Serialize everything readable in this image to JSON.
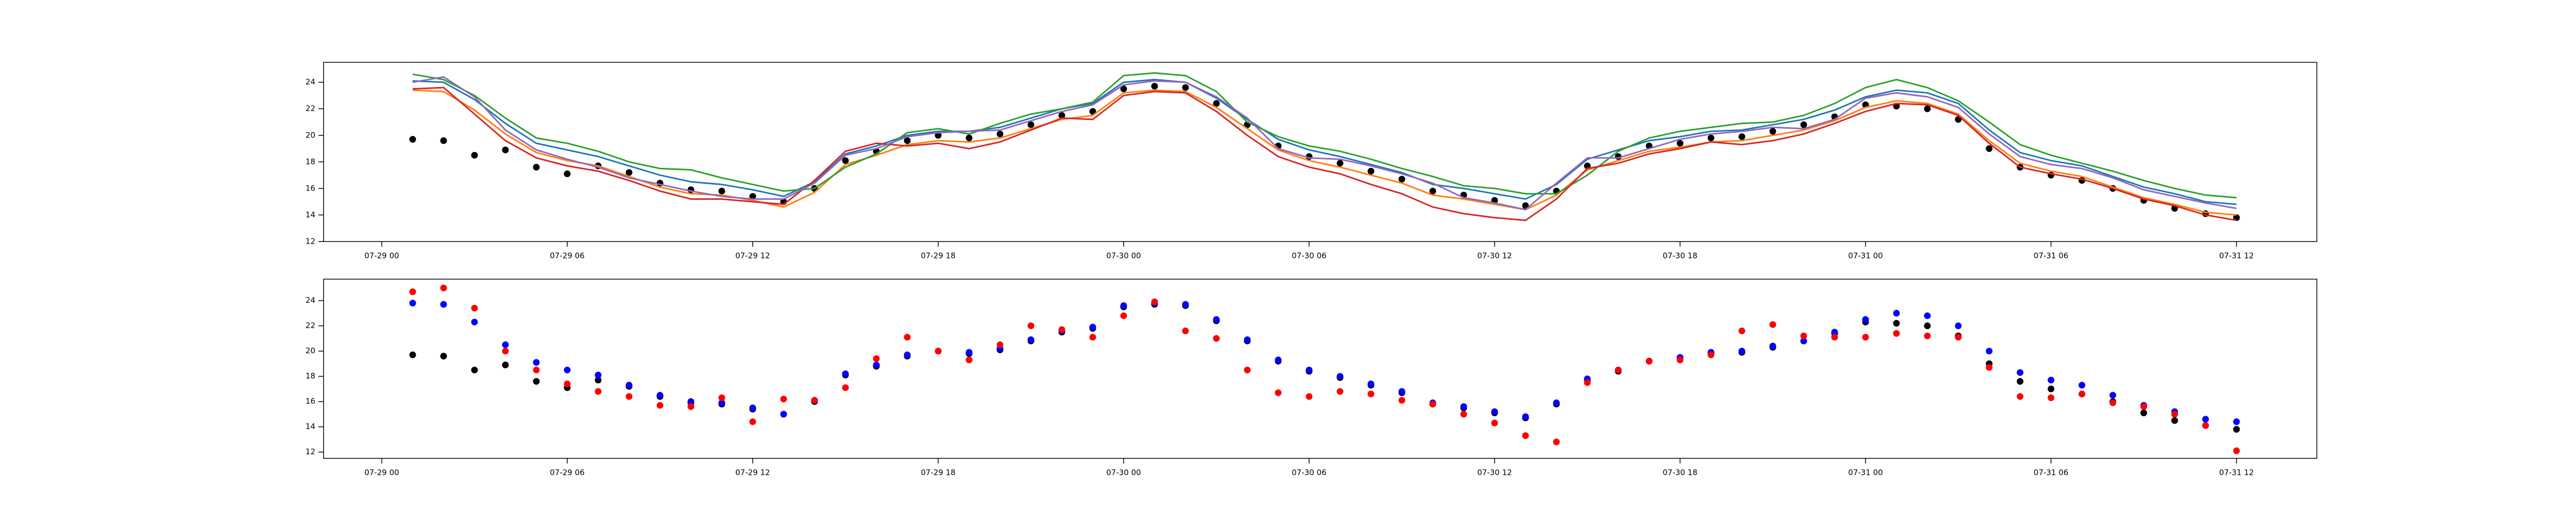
{
  "chart_data": [
    {
      "type": "line",
      "x": [
        "07-29 01",
        "07-29 02",
        "07-29 03",
        "07-29 04",
        "07-29 05",
        "07-29 06",
        "07-29 07",
        "07-29 08",
        "07-29 09",
        "07-29 10",
        "07-29 11",
        "07-29 12",
        "07-29 13",
        "07-29 14",
        "07-29 15",
        "07-29 16",
        "07-29 17",
        "07-29 18",
        "07-29 19",
        "07-29 20",
        "07-29 21",
        "07-29 22",
        "07-29 23",
        "07-30 00",
        "07-30 01",
        "07-30 02",
        "07-30 03",
        "07-30 04",
        "07-30 05",
        "07-30 06",
        "07-30 07",
        "07-30 08",
        "07-30 09",
        "07-30 10",
        "07-30 11",
        "07-30 12",
        "07-30 13",
        "07-30 14",
        "07-30 15",
        "07-30 16",
        "07-30 17",
        "07-30 18",
        "07-30 19",
        "07-30 20",
        "07-30 21",
        "07-30 22",
        "07-30 23",
        "07-31 00",
        "07-31 01",
        "07-31 02",
        "07-31 03",
        "07-31 04",
        "07-31 05",
        "07-31 06",
        "07-31 07",
        "07-31 08",
        "07-31 09",
        "07-31 10",
        "07-31 11",
        "07-31 12"
      ],
      "xlim": [
        "07-28 22:07",
        "07-31 14:36"
      ],
      "xticks": [
        "07-29 00",
        "07-29 06",
        "07-29 12",
        "07-29 18",
        "07-30 00",
        "07-30 06",
        "07-30 12",
        "07-30 18",
        "07-31 00",
        "07-31 06",
        "07-31 12"
      ],
      "ylim": [
        12,
        25.5
      ],
      "yticks": [
        12,
        14,
        16,
        18,
        20,
        22,
        24
      ],
      "series": [
        {
          "style": "dots",
          "color": "#000000",
          "values": [
            19.7,
            19.6,
            18.5,
            18.9,
            17.6,
            17.1,
            17.7,
            17.2,
            16.4,
            15.9,
            15.8,
            15.4,
            15.0,
            16.0,
            18.1,
            18.8,
            19.6,
            20.0,
            19.8,
            20.1,
            20.8,
            21.5,
            21.8,
            23.5,
            23.7,
            23.6,
            22.4,
            20.8,
            19.2,
            18.4,
            17.9,
            17.3,
            16.7,
            15.8,
            15.5,
            15.1,
            14.7,
            15.8,
            17.7,
            18.4,
            19.2,
            19.4,
            19.8,
            19.9,
            20.3,
            20.8,
            21.4,
            22.3,
            22.2,
            22.0,
            21.2,
            19.0,
            17.6,
            17.0,
            16.6,
            16.0,
            15.1,
            14.5,
            14.1,
            13.8
          ]
        },
        {
          "style": "line",
          "color": "#1f77b4",
          "values": [
            24.1,
            24.0,
            22.7,
            20.9,
            19.4,
            18.9,
            18.4,
            17.7,
            17.0,
            16.5,
            16.3,
            15.9,
            15.4,
            16.5,
            18.6,
            19.2,
            20.0,
            20.3,
            20.3,
            20.6,
            21.3,
            22.0,
            22.4,
            24.0,
            24.2,
            24.0,
            22.8,
            21.2,
            19.7,
            18.9,
            18.4,
            17.8,
            17.2,
            16.3,
            16.0,
            15.6,
            15.2,
            16.3,
            18.2,
            18.9,
            19.6,
            19.9,
            20.3,
            20.4,
            20.8,
            21.2,
            21.9,
            22.9,
            23.4,
            23.2,
            22.4,
            20.4,
            18.7,
            18.1,
            17.7,
            16.9,
            16.1,
            15.6,
            15.0,
            14.8
          ]
        },
        {
          "style": "line",
          "color": "#ff7f0e",
          "values": [
            23.4,
            23.3,
            21.9,
            20.1,
            18.7,
            18.1,
            17.7,
            16.9,
            16.1,
            15.6,
            15.5,
            15.1,
            14.6,
            15.7,
            17.8,
            18.5,
            19.3,
            19.6,
            19.5,
            19.8,
            20.5,
            21.2,
            21.5,
            23.2,
            23.4,
            23.3,
            22.1,
            20.5,
            18.9,
            18.1,
            17.6,
            17.0,
            16.4,
            15.5,
            15.2,
            14.8,
            14.4,
            15.5,
            17.4,
            18.1,
            18.8,
            19.1,
            19.5,
            19.6,
            20.0,
            20.4,
            21.1,
            22.1,
            22.6,
            22.4,
            21.6,
            19.6,
            17.9,
            17.3,
            16.9,
            16.1,
            15.3,
            14.8,
            14.2,
            14.0
          ]
        },
        {
          "style": "line",
          "color": "#2ca02c",
          "values": [
            24.6,
            24.2,
            23.0,
            21.3,
            19.8,
            19.4,
            18.8,
            18.0,
            17.5,
            17.4,
            16.8,
            16.3,
            15.8,
            16.0,
            17.6,
            18.6,
            20.2,
            20.5,
            20.1,
            20.9,
            21.6,
            22.0,
            22.5,
            24.5,
            24.7,
            24.5,
            23.3,
            21.0,
            19.9,
            19.2,
            18.8,
            18.2,
            17.5,
            16.9,
            16.2,
            16.0,
            15.6,
            15.6,
            17.0,
            18.8,
            19.8,
            20.3,
            20.6,
            20.9,
            21.0,
            21.5,
            22.4,
            23.6,
            24.2,
            23.6,
            22.6,
            21.0,
            19.3,
            18.5,
            17.9,
            17.3,
            16.6,
            16.0,
            15.5,
            15.3
          ]
        },
        {
          "style": "line",
          "color": "#d62728",
          "values": [
            23.5,
            23.6,
            21.6,
            19.6,
            18.3,
            17.7,
            17.3,
            16.6,
            15.8,
            15.2,
            15.2,
            15.0,
            14.8,
            16.6,
            18.8,
            19.4,
            19.2,
            19.4,
            19.0,
            19.5,
            20.4,
            21.3,
            21.2,
            23.0,
            23.3,
            23.2,
            21.8,
            20.0,
            18.4,
            17.6,
            17.1,
            16.3,
            15.6,
            14.6,
            14.1,
            13.8,
            13.6,
            15.2,
            17.5,
            17.9,
            18.6,
            19.0,
            19.5,
            19.3,
            19.6,
            20.1,
            20.9,
            21.8,
            22.4,
            22.3,
            21.5,
            19.4,
            17.6,
            17.1,
            16.7,
            16.0,
            15.2,
            14.7,
            14.0,
            13.6
          ]
        },
        {
          "style": "line",
          "color": "#9467bd",
          "values": [
            24.0,
            24.4,
            22.9,
            20.4,
            18.9,
            18.2,
            17.6,
            16.8,
            16.3,
            15.8,
            15.4,
            15.2,
            15.2,
            16.4,
            18.5,
            19.0,
            19.9,
            20.2,
            20.3,
            20.4,
            21.1,
            21.8,
            22.3,
            23.8,
            24.1,
            24.0,
            22.9,
            21.3,
            19.0,
            18.3,
            18.2,
            17.7,
            17.1,
            16.4,
            15.3,
            14.9,
            14.4,
            16.4,
            18.3,
            18.3,
            19.0,
            19.7,
            20.1,
            20.3,
            20.6,
            20.5,
            21.2,
            22.8,
            23.2,
            22.9,
            22.1,
            20.1,
            18.4,
            17.8,
            17.5,
            16.8,
            15.9,
            15.4,
            14.9,
            14.5
          ]
        }
      ]
    },
    {
      "type": "scatter",
      "x": [
        "07-29 01",
        "07-29 02",
        "07-29 03",
        "07-29 04",
        "07-29 05",
        "07-29 06",
        "07-29 07",
        "07-29 08",
        "07-29 09",
        "07-29 10",
        "07-29 11",
        "07-29 12",
        "07-29 13",
        "07-29 14",
        "07-29 15",
        "07-29 16",
        "07-29 17",
        "07-29 18",
        "07-29 19",
        "07-29 20",
        "07-29 21",
        "07-29 22",
        "07-29 23",
        "07-30 00",
        "07-30 01",
        "07-30 02",
        "07-30 03",
        "07-30 04",
        "07-30 05",
        "07-30 06",
        "07-30 07",
        "07-30 08",
        "07-30 09",
        "07-30 10",
        "07-30 11",
        "07-30 12",
        "07-30 13",
        "07-30 14",
        "07-30 15",
        "07-30 16",
        "07-30 17",
        "07-30 18",
        "07-30 19",
        "07-30 20",
        "07-30 21",
        "07-30 22",
        "07-30 23",
        "07-31 00",
        "07-31 01",
        "07-31 02",
        "07-31 03",
        "07-31 04",
        "07-31 05",
        "07-31 06",
        "07-31 07",
        "07-31 08",
        "07-31 09",
        "07-31 10",
        "07-31 11",
        "07-31 12"
      ],
      "xlim": [
        "07-28 22:07",
        "07-31 14:36"
      ],
      "xticks": [
        "07-29 00",
        "07-29 06",
        "07-29 12",
        "07-29 18",
        "07-30 00",
        "07-30 06",
        "07-30 12",
        "07-30 18",
        "07-31 00",
        "07-31 06",
        "07-31 12"
      ],
      "ylim": [
        11.5,
        25.7
      ],
      "yticks": [
        12,
        14,
        16,
        18,
        20,
        22,
        24
      ],
      "series": [
        {
          "color": "#000000",
          "values": [
            19.7,
            19.6,
            18.5,
            18.9,
            17.6,
            17.1,
            17.7,
            17.2,
            16.4,
            15.9,
            15.8,
            15.4,
            15.0,
            16.0,
            18.1,
            18.8,
            19.6,
            20.0,
            19.8,
            20.1,
            20.8,
            21.5,
            21.8,
            23.5,
            23.7,
            23.6,
            22.4,
            20.8,
            19.2,
            18.4,
            17.9,
            17.3,
            16.7,
            15.8,
            15.5,
            15.1,
            14.7,
            15.8,
            17.7,
            18.4,
            19.2,
            19.4,
            19.8,
            19.9,
            20.3,
            20.8,
            21.4,
            22.3,
            22.2,
            22.0,
            21.2,
            19.0,
            17.6,
            17.0,
            16.6,
            16.0,
            15.1,
            14.5,
            14.1,
            13.8
          ]
        },
        {
          "color": "#0000ff",
          "values": [
            23.8,
            23.7,
            22.3,
            20.5,
            19.1,
            18.5,
            18.1,
            17.3,
            16.5,
            16.0,
            15.9,
            15.5,
            15.0,
            16.1,
            18.2,
            18.9,
            19.7,
            20.0,
            19.9,
            20.2,
            20.9,
            21.6,
            21.9,
            23.6,
            23.8,
            23.7,
            22.5,
            20.9,
            19.3,
            18.5,
            18.0,
            17.4,
            16.8,
            15.9,
            15.6,
            15.2,
            14.8,
            15.9,
            17.8,
            18.5,
            19.2,
            19.5,
            19.9,
            20.0,
            20.4,
            20.8,
            21.5,
            22.5,
            23.0,
            22.8,
            22.0,
            20.0,
            18.3,
            17.7,
            17.3,
            16.5,
            15.7,
            15.2,
            14.6,
            14.4
          ]
        },
        {
          "color": "#ff0000",
          "values": [
            24.7,
            25.0,
            23.4,
            20.0,
            18.5,
            17.4,
            16.8,
            16.4,
            15.7,
            15.6,
            16.3,
            14.4,
            16.2,
            16.1,
            17.1,
            19.4,
            21.1,
            20.0,
            19.3,
            20.5,
            22.0,
            21.7,
            21.1,
            22.8,
            23.9,
            21.6,
            21.0,
            18.5,
            16.7,
            16.4,
            16.8,
            16.6,
            16.1,
            15.8,
            15.0,
            14.3,
            13.3,
            12.8,
            17.5,
            18.5,
            19.2,
            19.3,
            19.7,
            21.6,
            22.1,
            21.2,
            21.1,
            21.1,
            21.4,
            21.2,
            21.1,
            18.7,
            16.4,
            16.3,
            16.6,
            15.9,
            15.6,
            15.0,
            14.1,
            12.1
          ]
        }
      ]
    }
  ]
}
